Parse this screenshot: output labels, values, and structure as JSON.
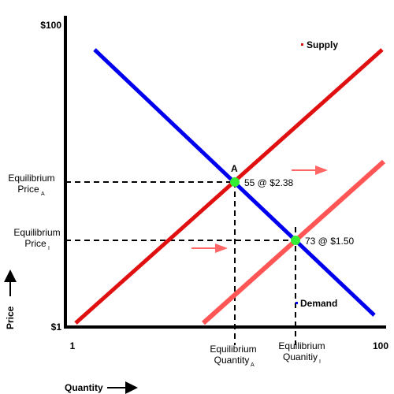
{
  "axes": {
    "y_top": "$100",
    "y_bottom": "$1",
    "x_left": "1",
    "x_right": "100",
    "y_title": "Price",
    "x_title": "Quantity"
  },
  "legend": [
    {
      "label": "Supply"
    },
    {
      "label": "Demand"
    }
  ],
  "points": [
    {
      "name": "A",
      "label": "55 @ $2.38"
    },
    {
      "label": "73 @ $1.50"
    }
  ],
  "y_labels": [
    {
      "lines": [
        "Equilibrium",
        "Price"
      ],
      "sub": "A"
    },
    {
      "lines": [
        "Equilibrium",
        "Price"
      ],
      "sub": "I"
    }
  ],
  "x_labels": [
    {
      "lines": [
        "Equilibrium",
        "Quantity"
      ],
      "sub": "A"
    },
    {
      "lines": [
        "Equilibrium",
        "Quanitiy"
      ],
      "sub": "I"
    }
  ]
}
